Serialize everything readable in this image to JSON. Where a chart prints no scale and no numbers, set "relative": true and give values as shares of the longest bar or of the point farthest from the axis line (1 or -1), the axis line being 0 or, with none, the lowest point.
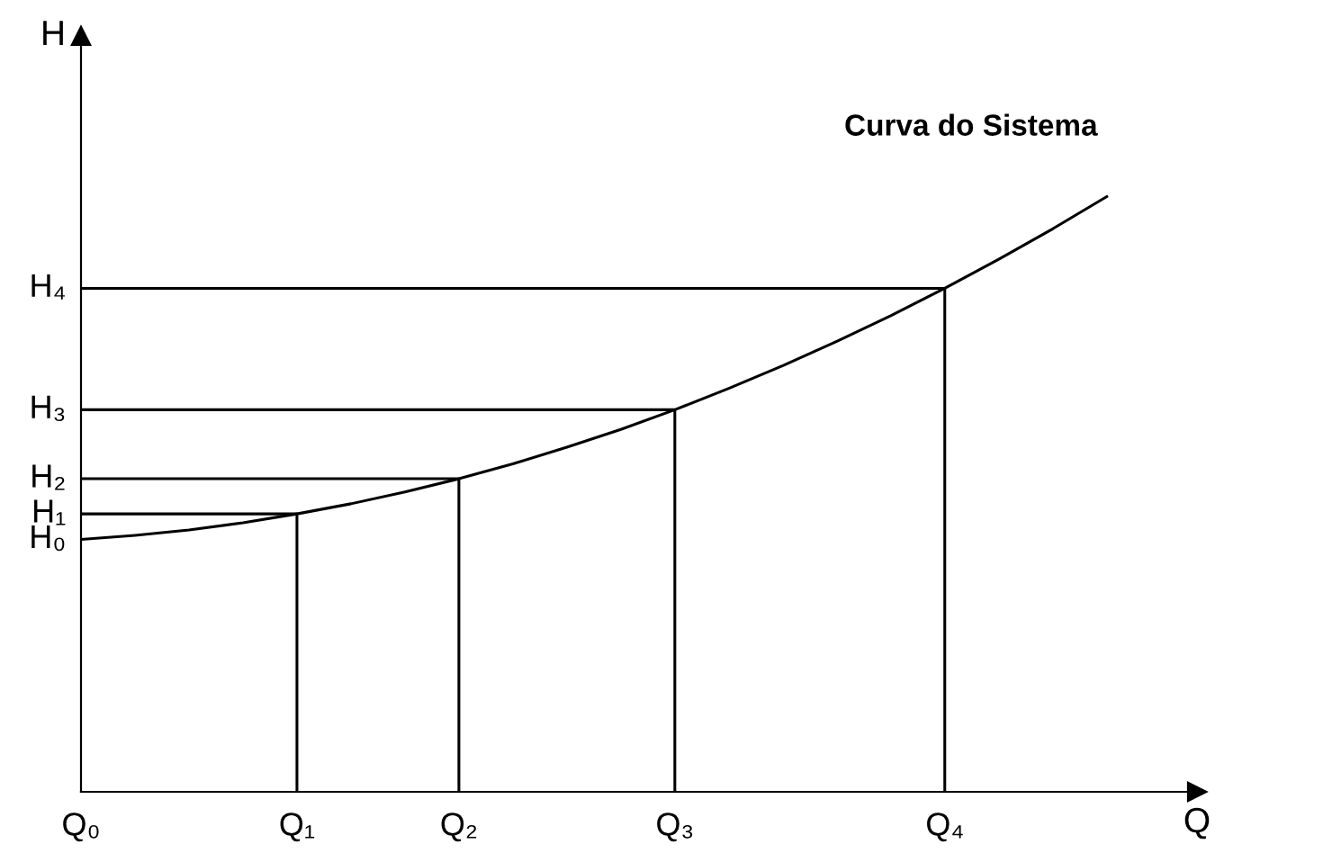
{
  "chart_data": {
    "type": "line",
    "xlabel": "Q",
    "ylabel": "H",
    "relative": true,
    "categories": [
      "Q₀",
      null,
      null,
      null,
      "Q₁",
      null,
      null,
      "Q₂",
      null,
      null,
      null,
      "Q₃",
      null,
      null,
      null,
      null,
      "Q₄",
      null,
      null,
      null
    ],
    "annotations": [
      "H₀",
      "H₁",
      "H₂",
      "H₃",
      "H₄"
    ],
    "legend": false,
    "series": [
      {
        "name": "Curva do Sistema",
        "color": "#000000",
        "values": [
          0.424,
          0.431,
          0.44,
          0.452,
          0.467,
          0.484,
          0.504,
          0.526,
          0.551,
          0.579,
          0.609,
          0.642,
          0.678,
          0.716,
          0.757,
          0.8,
          0.846,
          0.895,
          0.946,
          1
        ]
      },
      {
        "color": "#000000",
        "x": [
          "Q₀",
          "Q₁",
          "Q₁"
        ],
        "values": [
          0.467,
          0.467,
          0
        ]
      },
      {
        "color": "#000000",
        "x": [
          "Q₀",
          "Q₂",
          "Q₂"
        ],
        "values": [
          0.526,
          0.526,
          0
        ]
      },
      {
        "color": "#000000",
        "x": [
          "Q₀",
          "Q₃",
          "Q₃"
        ],
        "values": [
          0.642,
          0.642,
          0
        ]
      },
      {
        "color": "#000000",
        "x": [
          "Q₀",
          "Q₄",
          "Q₄"
        ],
        "values": [
          0.846,
          0.846,
          0
        ]
      }
    ]
  }
}
